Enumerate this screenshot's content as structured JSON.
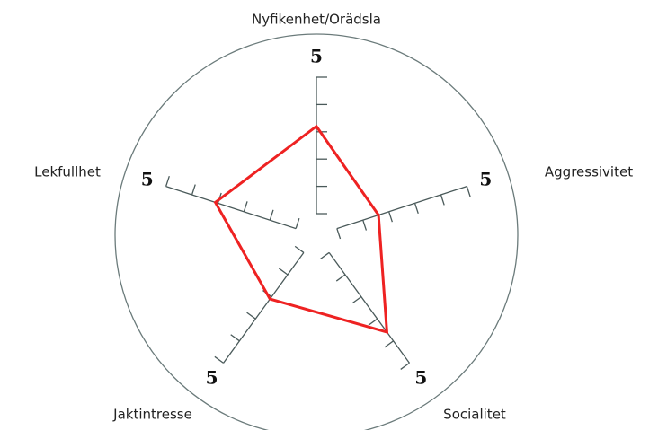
{
  "chart_data": {
    "type": "radar",
    "categories": [
      "Nyfikenhet/Orädsla",
      "Aggressivitet",
      "Socialitet",
      "Jaktintresse",
      "Lekfullhet"
    ],
    "values": [
      3.2,
      1.6,
      3.6,
      2.1,
      3.1
    ],
    "color": "#ee2222",
    "rlim": [
      0,
      5
    ],
    "rticks": [
      {
        "value": 0,
        "label": null
      },
      {
        "value": 1,
        "label": null
      },
      {
        "value": 2,
        "label": null
      },
      {
        "value": 3,
        "label": null
      },
      {
        "value": 4,
        "label": null
      },
      5
    ]
  }
}
